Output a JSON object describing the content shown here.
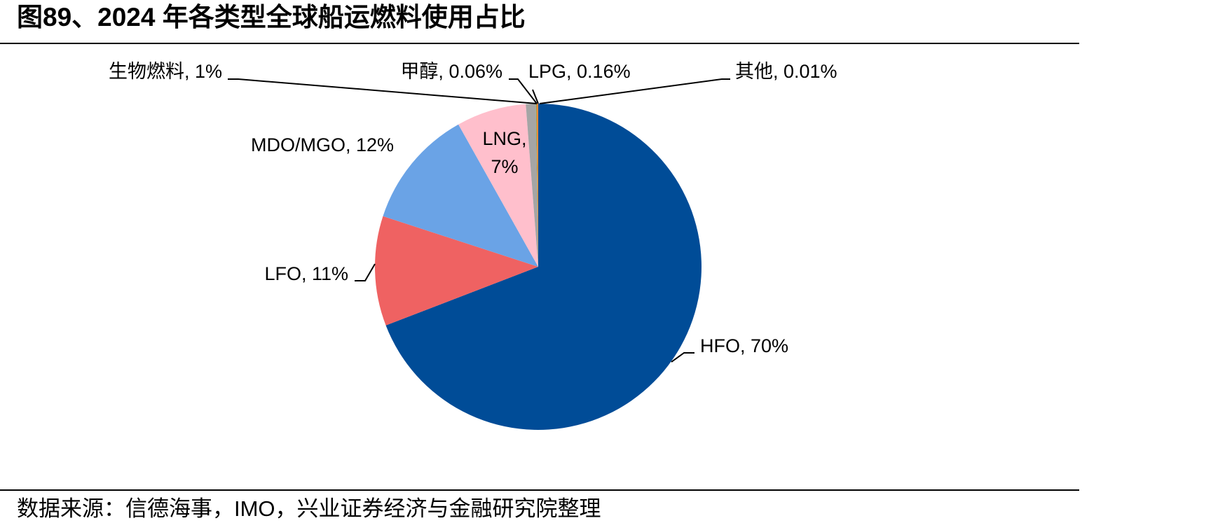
{
  "title": "图89、2024 年各类型全球船运燃料使用占比",
  "chart_data": {
    "type": "pie",
    "values": [
      70,
      11,
      12,
      7,
      1,
      0.06,
      0.16,
      0.01
    ],
    "value_labels": [
      "HFO, 70%",
      "LFO, 11%",
      "MDO/MGO, 12%",
      "LNG, 7%",
      "生物燃料, 1%",
      "甲醇, 0.06%",
      "LPG, 0.16%",
      "其他, 0.01%"
    ],
    "colors": [
      "#004c97",
      "#ef6262",
      "#6aa3e6",
      "#ffbfcc",
      "#a5a5a5",
      "#70ad47",
      "#ed7d31",
      "#ffc000"
    ]
  },
  "source": "数据来源：信德海事，IMO，兴业证券经济与金融研究院整理"
}
